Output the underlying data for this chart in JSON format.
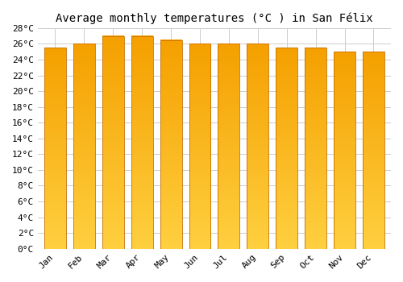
{
  "title": "Average monthly temperatures (°C ) in San Félix",
  "months": [
    "Jan",
    "Feb",
    "Mar",
    "Apr",
    "May",
    "Jun",
    "Jul",
    "Aug",
    "Sep",
    "Oct",
    "Nov",
    "Dec"
  ],
  "values": [
    25.5,
    26.0,
    27.0,
    27.0,
    26.5,
    26.0,
    26.0,
    26.0,
    25.5,
    25.5,
    25.0,
    25.0
  ],
  "ylim": [
    0,
    28
  ],
  "ytick_step": 2,
  "bar_color_bottom": "#FFD040",
  "bar_color_top": "#F5A000",
  "bar_border_color": "#C87000",
  "background_color": "#FFFFFF",
  "grid_color": "#CCCCCC",
  "title_fontsize": 10,
  "tick_fontsize": 8,
  "font_family": "monospace"
}
